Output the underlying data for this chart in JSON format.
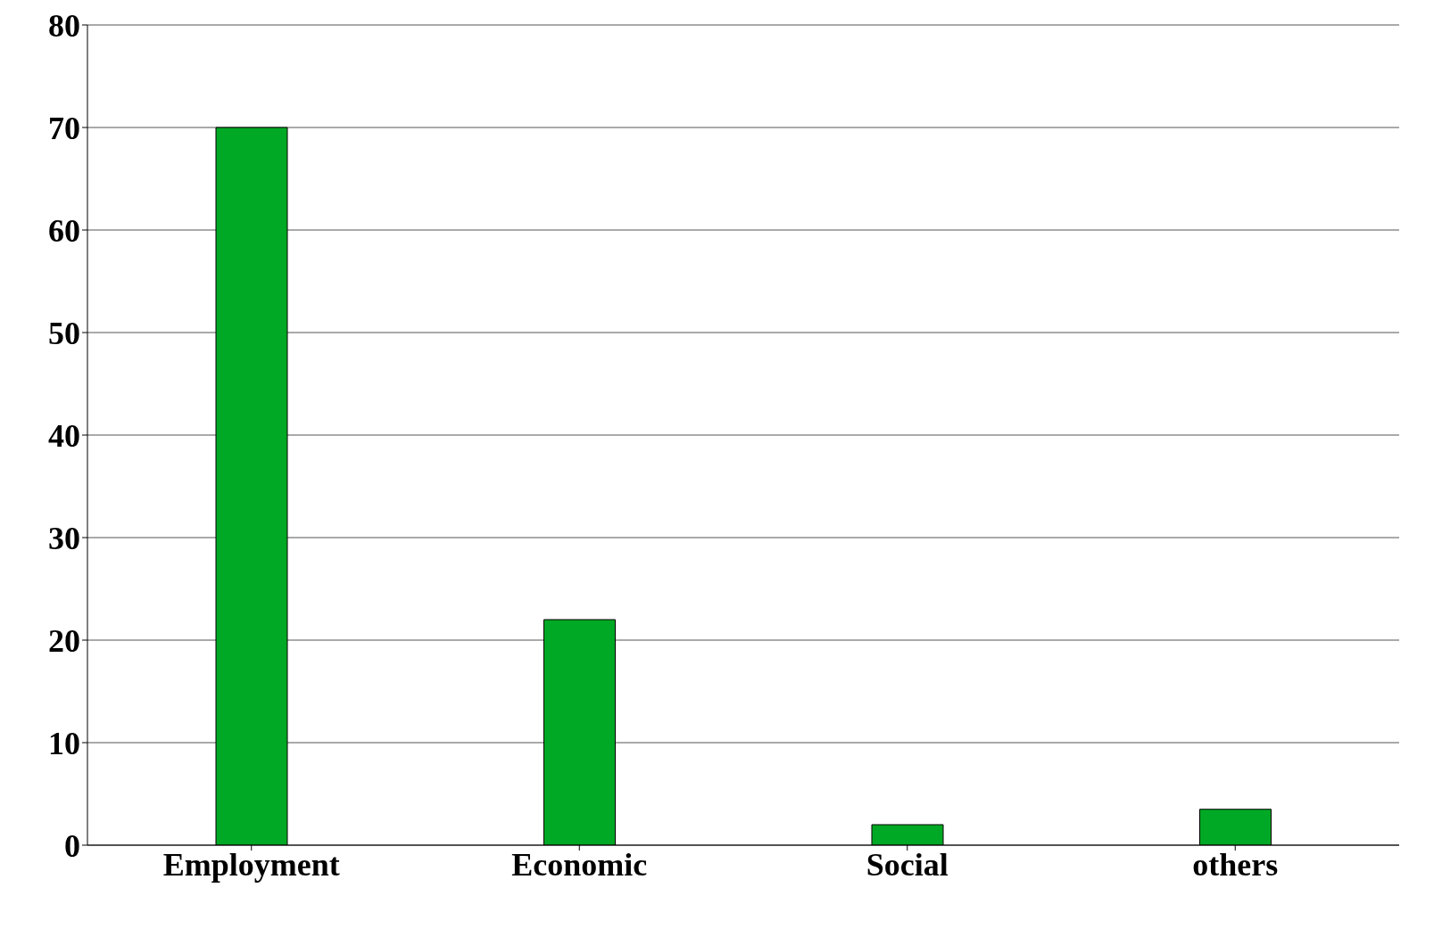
{
  "chart_data": {
    "type": "bar",
    "categories": [
      "Employment",
      "Economic",
      "Social",
      "others"
    ],
    "values": [
      70,
      22,
      2,
      3.5
    ],
    "color": "#00a925",
    "ylim": [
      0,
      80
    ],
    "yticks": [
      0,
      10,
      20,
      30,
      40,
      50,
      60,
      70,
      80
    ],
    "grid": "y"
  }
}
